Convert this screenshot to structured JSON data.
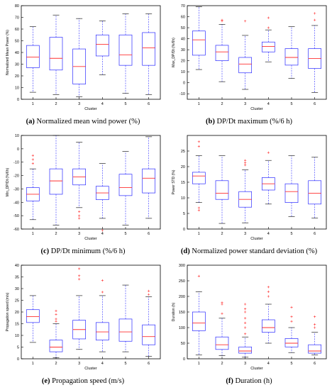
{
  "chart_data": [
    {
      "type": "boxplot",
      "panel_letter": "(a)",
      "caption": "Normalized mean wind power (%)",
      "ylabel": "Normalized Mean Power (%)",
      "xlabel": "Cluster",
      "ylim": [
        0,
        80
      ],
      "yticks": [
        0,
        10,
        20,
        30,
        40,
        50,
        60,
        70,
        80
      ],
      "categories": [
        "1",
        "2",
        "3",
        "4",
        "5",
        "6"
      ],
      "boxes": [
        {
          "whisker_low": 6,
          "q1": 27,
          "median": 36,
          "q3": 46,
          "whisker_high": 62,
          "outliers": []
        },
        {
          "whisker_low": 4,
          "q1": 25,
          "median": 35,
          "q3": 53,
          "whisker_high": 72,
          "outliers": []
        },
        {
          "whisker_low": 2,
          "q1": 13,
          "median": 28,
          "q3": 43,
          "whisker_high": 69,
          "outliers": []
        },
        {
          "whisker_low": 21,
          "q1": 37,
          "median": 47,
          "q3": 55,
          "whisker_high": 67,
          "outliers": []
        },
        {
          "whisker_low": 5,
          "q1": 29,
          "median": 38,
          "q3": 55,
          "whisker_high": 73,
          "outliers": []
        },
        {
          "whisker_low": 4,
          "q1": 29,
          "median": 44,
          "q3": 57,
          "whisker_high": 73,
          "outliers": []
        }
      ]
    },
    {
      "type": "boxplot",
      "panel_letter": "(b)",
      "caption": "DP/Dt maximum (%/6 h)",
      "ylabel": "Max_DP/Dt (%/6h)",
      "xlabel": "Cluster",
      "ylim": [
        -15,
        70
      ],
      "yticks": [
        -10,
        0,
        10,
        20,
        30,
        40,
        50,
        60,
        70
      ],
      "categories": [
        "1",
        "2",
        "3",
        "4",
        "5",
        "6"
      ],
      "boxes": [
        {
          "whisker_low": 12,
          "q1": 25,
          "median": 39,
          "q3": 47,
          "whisker_high": 69,
          "outliers": []
        },
        {
          "whisker_low": 1,
          "q1": 20,
          "median": 28,
          "q3": 34,
          "whisker_high": 53,
          "outliers": [
            56,
            57
          ]
        },
        {
          "whisker_low": -6,
          "q1": 9,
          "median": 17,
          "q3": 23,
          "whisker_high": 43,
          "outliers": [
            56
          ]
        },
        {
          "whisker_low": 19,
          "q1": 28,
          "median": 33,
          "q3": 37,
          "whisker_high": 48,
          "outliers": [
            50,
            59
          ]
        },
        {
          "whisker_low": 4,
          "q1": 16,
          "median": 23,
          "q3": 31,
          "whisker_high": 51,
          "outliers": []
        },
        {
          "whisker_low": -9,
          "q1": 13,
          "median": 22,
          "q3": 31,
          "whisker_high": 52,
          "outliers": [
            57,
            63
          ]
        }
      ]
    },
    {
      "type": "boxplot",
      "panel_letter": "(c)",
      "caption": "DP/Dt minimum (%/6 h)",
      "ylabel": "Min_DP/Dt (%/6h)",
      "xlabel": "Cluster",
      "ylim": [
        -60,
        10
      ],
      "yticks": [
        -60,
        -50,
        -40,
        -30,
        -20,
        -10,
        0,
        10
      ],
      "categories": [
        "1",
        "2",
        "3",
        "4",
        "5",
        "6"
      ],
      "boxes": [
        {
          "whisker_low": -53,
          "q1": -39,
          "median": -34,
          "q3": -29,
          "whisker_high": -15,
          "outliers": [
            -5,
            -8,
            -11
          ]
        },
        {
          "whisker_low": -57,
          "q1": -34,
          "median": -24,
          "q3": -15,
          "whisker_high": 10,
          "outliers": []
        },
        {
          "whisker_low": -44,
          "q1": -27,
          "median": -21,
          "q3": -15,
          "whisker_high": 5,
          "outliers": [
            -47,
            -50,
            -52
          ]
        },
        {
          "whisker_low": -52,
          "q1": -38,
          "median": -33,
          "q3": -28,
          "whisker_high": -11,
          "outliers": [
            -61
          ]
        },
        {
          "whisker_low": -57,
          "q1": -35,
          "median": -29,
          "q3": -19,
          "whisker_high": -2,
          "outliers": []
        },
        {
          "whisker_low": -52,
          "q1": -33,
          "median": -22,
          "q3": -15,
          "whisker_high": 9,
          "outliers": []
        }
      ]
    },
    {
      "type": "boxplot",
      "panel_letter": "(d)",
      "caption": "Normalized power standard deviation (%)",
      "ylabel": "Power STD (%)",
      "xlabel": "Cluster",
      "ylim": [
        0,
        30
      ],
      "yticks": [
        0,
        5,
        10,
        15,
        20,
        25
      ],
      "categories": [
        "1",
        "2",
        "3",
        "4",
        "5",
        "6"
      ],
      "boxes": [
        {
          "whisker_low": 8.5,
          "q1": 14.5,
          "median": 17,
          "q3": 18.2,
          "whisker_high": 23.5,
          "outliers": [
            6,
            6.8,
            26.5,
            28
          ]
        },
        {
          "whisker_low": 1.8,
          "q1": 9.5,
          "median": 11.5,
          "q3": 15.5,
          "whisker_high": 23.5,
          "outliers": []
        },
        {
          "whisker_low": 2,
          "q1": 7,
          "median": 9.5,
          "q3": 12,
          "whisker_high": 19,
          "outliers": [
            20.5,
            21.2,
            22
          ]
        },
        {
          "whisker_low": 8,
          "q1": 12.5,
          "median": 14.5,
          "q3": 16.5,
          "whisker_high": 22,
          "outliers": [
            24.5
          ]
        },
        {
          "whisker_low": 4,
          "q1": 8.5,
          "median": 12,
          "q3": 14.5,
          "whisker_high": 23.5,
          "outliers": []
        },
        {
          "whisker_low": 3.5,
          "q1": 8,
          "median": 11.5,
          "q3": 15.5,
          "whisker_high": 23,
          "outliers": []
        }
      ]
    },
    {
      "type": "boxplot",
      "panel_letter": "(e)",
      "caption": "Propagation speed (m/s)",
      "ylabel": "Propagation speed (m/s)",
      "xlabel": "Cluster",
      "ylim": [
        0,
        40
      ],
      "yticks": [
        0,
        5,
        10,
        15,
        20,
        25,
        30,
        35,
        40
      ],
      "categories": [
        "1",
        "2",
        "3",
        "4",
        "5",
        "6"
      ],
      "boxes": [
        {
          "whisker_low": 7,
          "q1": 15.5,
          "median": 18,
          "q3": 21,
          "whisker_high": 27,
          "outliers": []
        },
        {
          "whisker_low": 0.5,
          "q1": 3,
          "median": 5,
          "q3": 8,
          "whisker_high": 15,
          "outliers": [
            16,
            17,
            19,
            20.5
          ]
        },
        {
          "whisker_low": 4,
          "q1": 8.5,
          "median": 12.5,
          "q3": 16.5,
          "whisker_high": 27,
          "outliers": [
            34,
            35.5,
            38.5
          ]
        },
        {
          "whisker_low": 3,
          "q1": 8,
          "median": 11.5,
          "q3": 15.5,
          "whisker_high": 27,
          "outliers": [
            28.5,
            33.5
          ]
        },
        {
          "whisker_low": 3,
          "q1": 7.5,
          "median": 11.5,
          "q3": 17,
          "whisker_high": 31.5,
          "outliers": []
        },
        {
          "whisker_low": 1,
          "q1": 6,
          "median": 9.5,
          "q3": 14.5,
          "whisker_high": 26.5,
          "outliers": [
            27.5,
            29
          ]
        }
      ]
    },
    {
      "type": "boxplot",
      "panel_letter": "(f)",
      "caption": "Duration (h)",
      "ylabel": "Duration (h)",
      "xlabel": "Cluster",
      "ylim": [
        0,
        300
      ],
      "yticks": [
        0,
        50,
        100,
        150,
        200,
        250,
        300
      ],
      "categories": [
        "1",
        "2",
        "3",
        "4",
        "5",
        "6"
      ],
      "boxes": [
        {
          "whisker_low": 12,
          "q1": 90,
          "median": 115,
          "q3": 150,
          "whisker_high": 215,
          "outliers": [
            265
          ]
        },
        {
          "whisker_low": 10,
          "q1": 30,
          "median": 45,
          "q3": 70,
          "whisker_high": 130,
          "outliers": [
            145,
            175,
            180
          ]
        },
        {
          "whisker_low": 5,
          "q1": 18,
          "median": 25,
          "q3": 38,
          "whisker_high": 70,
          "outliers": [
            80,
            100,
            115,
            130,
            150,
            160,
            175
          ]
        },
        {
          "whisker_low": 50,
          "q1": 85,
          "median": 100,
          "q3": 125,
          "whisker_high": 175,
          "outliers": [
            200,
            215,
            230
          ]
        },
        {
          "whisker_low": 20,
          "q1": 38,
          "median": 50,
          "q3": 65,
          "whisker_high": 100,
          "outliers": [
            120,
            135,
            165
          ]
        },
        {
          "whisker_low": 12,
          "q1": 18,
          "median": 25,
          "q3": 45,
          "whisker_high": 85,
          "outliers": [
            100,
            110,
            135
          ]
        }
      ]
    }
  ],
  "style": {
    "box_color": "#2b2bff",
    "median_color": "#ff3030",
    "outlier_color": "#ff3030",
    "axis_color": "#000000"
  }
}
